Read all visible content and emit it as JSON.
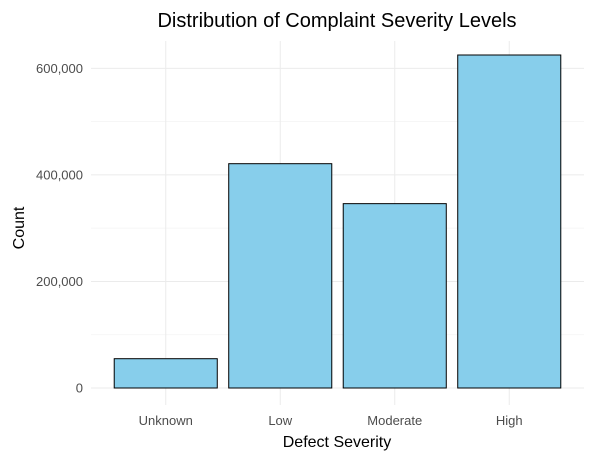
{
  "chart_data": {
    "type": "bar",
    "title": "Distribution of Complaint Severity Levels",
    "xlabel": "Defect Severity",
    "ylabel": "Count",
    "categories": [
      "Unknown",
      "Low",
      "Moderate",
      "High"
    ],
    "values": [
      55000,
      421000,
      346000,
      625000
    ],
    "ylim": [
      0,
      625000
    ],
    "yticks": [
      0,
      200000,
      400000,
      600000
    ],
    "ytick_labels": [
      "0",
      "200,000",
      "400,000",
      "600,000"
    ],
    "grid": true,
    "legend": "none",
    "colors": {
      "bar_fill": "#87ceeb",
      "bar_stroke": "#000000",
      "background": "#ffffff"
    }
  }
}
